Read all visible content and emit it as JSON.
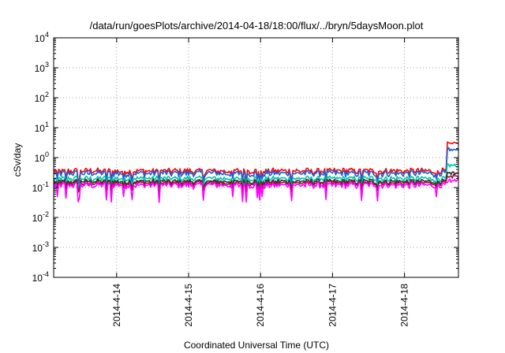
{
  "chart_data": {
    "type": "line",
    "title": "/data/run/goesPlots/archive/2014-04-18/18:00/flux/../bryn/5daysMoon.plot",
    "xlabel": "Coordinated Universal Time (UTC)",
    "ylabel": "cSv/day",
    "y_scale": "log",
    "ylim": [
      0.0001,
      10000
    ],
    "y_ticks": [
      {
        "base": "10",
        "exp": "-4",
        "value": 0.0001
      },
      {
        "base": "10",
        "exp": "-3",
        "value": 0.001
      },
      {
        "base": "10",
        "exp": "-2",
        "value": 0.01
      },
      {
        "base": "10",
        "exp": "-1",
        "value": 0.1
      },
      {
        "base": "10",
        "exp": "0",
        "value": 1
      },
      {
        "base": "10",
        "exp": "1",
        "value": 10
      },
      {
        "base": "10",
        "exp": "2",
        "value": 100
      },
      {
        "base": "10",
        "exp": "3",
        "value": 1000
      },
      {
        "base": "10",
        "exp": "4",
        "value": 10000
      }
    ],
    "x_range_days": [
      "2014-04-13 03:00",
      "2014-04-18 18:00"
    ],
    "x_ticks": [
      "2014-4-14",
      "2014-4-15",
      "2014-4-16",
      "2014-4-17",
      "2014-4-18"
    ],
    "grid": true,
    "legend": "none",
    "series": [
      {
        "color": "#ff0000",
        "base": 0.36,
        "jitter": 0.22,
        "dip": 0.55,
        "end": 3.0
      },
      {
        "color": "#1a5fd9",
        "base": 0.3,
        "jitter": 0.24,
        "dip": 0.55,
        "end": 1.9
      },
      {
        "color": "#00c8a0",
        "base": 0.2,
        "jitter": 0.2,
        "dip": 0.6,
        "end": 0.55
      },
      {
        "color": "#303030",
        "base": 0.16,
        "jitter": 0.18,
        "dip": 0.6,
        "end": 0.3
      },
      {
        "color": "#a01040",
        "base": 0.14,
        "jitter": 0.18,
        "dip": 0.6,
        "end": 0.24
      },
      {
        "color": "#ff00ff",
        "base": 0.12,
        "jitter": 0.22,
        "dip": 0.35,
        "end": 0.17
      }
    ],
    "jump_at": "2014-04-18 14:00"
  }
}
